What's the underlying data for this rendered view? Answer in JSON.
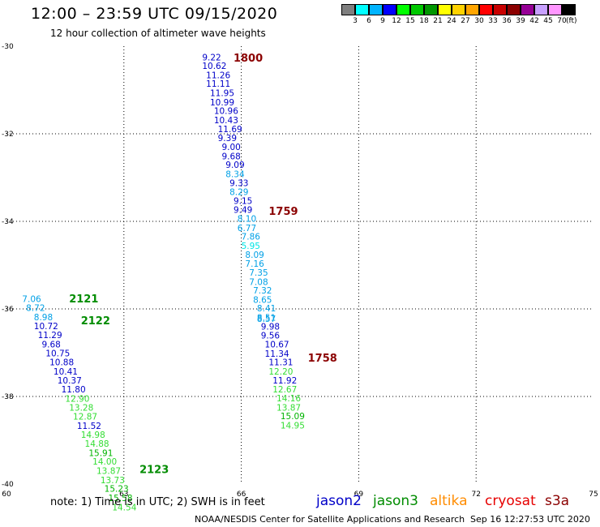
{
  "header": {
    "title": "12:00 – 23:59 UTC 09/15/2020",
    "subtitle": "12 hour collection of altimeter wave heights"
  },
  "colorbar": {
    "labels": [
      "3",
      "6",
      "9",
      "12",
      "15",
      "18",
      "21",
      "24",
      "27",
      "30",
      "33",
      "36",
      "39",
      "42",
      "45",
      "70"
    ],
    "unit": "(ft)",
    "colors": [
      "#7f7f7f",
      "#00ffff",
      "#00b4ff",
      "#0000ff",
      "#00ff00",
      "#00c800",
      "#009600",
      "#ffff00",
      "#ffd200",
      "#ffa500",
      "#ff0000",
      "#c80000",
      "#8b0000",
      "#960096",
      "#c8a0ff",
      "#ff96ff",
      "#000000"
    ]
  },
  "footer": {
    "note": "note:  1) Time is in UTC;  2) SWH is in feet",
    "credit": "NOAA/NESDIS Center for Satellite Applications and Research",
    "timestamp": "Sep 16 12:27:53 UTC 2020",
    "satellites": [
      {
        "name": "jason2",
        "color": "#0000c8"
      },
      {
        "name": "jason3",
        "color": "#008c00"
      },
      {
        "name": "altika",
        "color": "#ff8c00"
      },
      {
        "name": "cryosat",
        "color": "#e60000"
      },
      {
        "name": "s3a",
        "color": "#8b0000"
      }
    ]
  },
  "chart_data": {
    "type": "scatter",
    "title": "12:00 – 23:59 UTC 09/15/2020",
    "subtitle": "12 hour collection of altimeter wave heights",
    "xlim": [
      60,
      75
    ],
    "ylim": [
      -40,
      -30
    ],
    "xticks": [
      "60",
      "63",
      "66",
      "69",
      "72",
      "75"
    ],
    "yticks": [
      "-30",
      "-32",
      "-34",
      "-36",
      "-38",
      "-40"
    ],
    "grid": true,
    "series": [
      {
        "name": "s3a",
        "color": "#8b0000",
        "time_labels": [
          {
            "label": "1800",
            "x": 65.8,
            "y": -30.35
          },
          {
            "label": "1759",
            "x": 66.7,
            "y": -33.85
          },
          {
            "label": "1758",
            "x": 67.7,
            "y": -37.2
          }
        ],
        "points": [
          {
            "x": 65.0,
            "y": -30.32,
            "v": "9.22"
          },
          {
            "x": 65.0,
            "y": -30.52,
            "v": "10.62"
          },
          {
            "x": 65.1,
            "y": -30.73,
            "v": "11.26"
          },
          {
            "x": 65.1,
            "y": -30.93,
            "v": "11.11"
          },
          {
            "x": 65.2,
            "y": -31.14,
            "v": "11.95"
          },
          {
            "x": 65.2,
            "y": -31.35,
            "v": "10.99"
          },
          {
            "x": 65.3,
            "y": -31.55,
            "v": "10.96"
          },
          {
            "x": 65.3,
            "y": -31.76,
            "v": "10.43"
          },
          {
            "x": 65.4,
            "y": -31.96,
            "v": "11.69"
          },
          {
            "x": 65.4,
            "y": -32.17,
            "v": "9.39"
          },
          {
            "x": 65.5,
            "y": -32.37,
            "v": "9.00"
          },
          {
            "x": 65.5,
            "y": -32.58,
            "v": "9.68"
          },
          {
            "x": 65.6,
            "y": -32.78,
            "v": "9.09"
          },
          {
            "x": 65.6,
            "y": -32.99,
            "v": "8.34"
          },
          {
            "x": 65.7,
            "y": -33.19,
            "v": "9.33"
          },
          {
            "x": 65.7,
            "y": -33.4,
            "v": "8.29"
          },
          {
            "x": 65.8,
            "y": -33.6,
            "v": "9.15"
          },
          {
            "x": 65.8,
            "y": -33.81,
            "v": "9.49"
          },
          {
            "x": 65.9,
            "y": -34.01,
            "v": "8.10"
          },
          {
            "x": 65.9,
            "y": -34.22,
            "v": "6.77"
          },
          {
            "x": 66.0,
            "y": -34.42,
            "v": "7.86"
          },
          {
            "x": 66.0,
            "y": -34.63,
            "v": "5.95"
          },
          {
            "x": 66.1,
            "y": -34.83,
            "v": "8.09"
          },
          {
            "x": 66.1,
            "y": -35.04,
            "v": "7.16"
          },
          {
            "x": 66.2,
            "y": -35.24,
            "v": "7.35"
          },
          {
            "x": 66.2,
            "y": -35.45,
            "v": "7.08"
          },
          {
            "x": 66.3,
            "y": -35.65,
            "v": "7.32"
          },
          {
            "x": 66.3,
            "y": -35.86,
            "v": "8.65"
          },
          {
            "x": 66.4,
            "y": -36.06,
            "v": "8.41"
          },
          {
            "x": 66.4,
            "y": -36.27,
            "v": "8.51"
          },
          {
            "x": 66.4,
            "y": -36.3,
            "v": "8.57"
          },
          {
            "x": 66.5,
            "y": -36.47,
            "v": "9.98"
          },
          {
            "x": 66.5,
            "y": -36.68,
            "v": "9.56"
          },
          {
            "x": 66.6,
            "y": -36.88,
            "v": "10.67"
          },
          {
            "x": 66.6,
            "y": -37.09,
            "v": "11.34"
          },
          {
            "x": 66.7,
            "y": -37.29,
            "v": "11.31"
          },
          {
            "x": 66.7,
            "y": -37.5,
            "v": "12.20"
          },
          {
            "x": 66.8,
            "y": -37.7,
            "v": "11.92"
          },
          {
            "x": 66.8,
            "y": -37.91,
            "v": "12.67"
          },
          {
            "x": 66.9,
            "y": -38.11,
            "v": "14.16"
          },
          {
            "x": 66.9,
            "y": -38.32,
            "v": "13.87"
          },
          {
            "x": 67.0,
            "y": -38.52,
            "v": "15.09"
          },
          {
            "x": 67.0,
            "y": -38.73,
            "v": "14.95"
          }
        ]
      },
      {
        "name": "jason3",
        "color": "#008c00",
        "time_labels": [
          {
            "label": "2121",
            "x": 61.6,
            "y": -35.85
          },
          {
            "label": "2122",
            "x": 61.9,
            "y": -36.35
          },
          {
            "label": "2123",
            "x": 63.4,
            "y": -39.75
          }
        ],
        "points": [
          {
            "x": 60.4,
            "y": -35.84,
            "v": "7.06"
          },
          {
            "x": 60.5,
            "y": -36.05,
            "v": "8.72"
          },
          {
            "x": 60.7,
            "y": -36.26,
            "v": "8.98"
          },
          {
            "x": 60.7,
            "y": -36.46,
            "v": "10.72"
          },
          {
            "x": 60.8,
            "y": -36.67,
            "v": "11.29"
          },
          {
            "x": 60.9,
            "y": -36.88,
            "v": "9.68"
          },
          {
            "x": 61.0,
            "y": -37.08,
            "v": "10.75"
          },
          {
            "x": 61.1,
            "y": -37.29,
            "v": "10.88"
          },
          {
            "x": 61.2,
            "y": -37.5,
            "v": "10.41"
          },
          {
            "x": 61.3,
            "y": -37.7,
            "v": "10.37"
          },
          {
            "x": 61.4,
            "y": -37.91,
            "v": "11.80"
          },
          {
            "x": 61.5,
            "y": -38.12,
            "v": "12.90"
          },
          {
            "x": 61.6,
            "y": -38.32,
            "v": "13.28"
          },
          {
            "x": 61.7,
            "y": -38.53,
            "v": "12.87"
          },
          {
            "x": 61.8,
            "y": -38.74,
            "v": "11.52"
          },
          {
            "x": 61.9,
            "y": -38.94,
            "v": "14.98"
          },
          {
            "x": 62.0,
            "y": -39.15,
            "v": "14.88"
          },
          {
            "x": 62.1,
            "y": -39.36,
            "v": "15.91"
          },
          {
            "x": 62.2,
            "y": -39.56,
            "v": "14.00"
          },
          {
            "x": 62.3,
            "y": -39.77,
            "v": "13.87"
          },
          {
            "x": 62.4,
            "y": -39.98,
            "v": "13.73"
          },
          {
            "x": 62.5,
            "y": -40.18,
            "v": "15.23"
          },
          {
            "x": 62.6,
            "y": -40.39,
            "v": "15.58"
          },
          {
            "x": 62.7,
            "y": -40.6,
            "v": "14.54"
          }
        ]
      }
    ]
  }
}
